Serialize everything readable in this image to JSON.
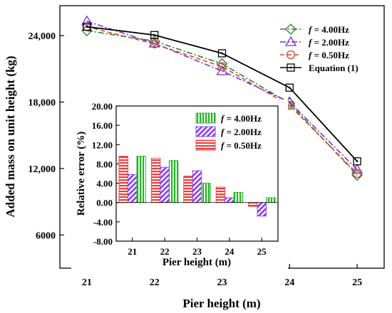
{
  "chart_data": [
    {
      "type": "line",
      "xlabel": "Pier height (m)",
      "ylabel": "Added mass on unit height (kg)",
      "x": [
        21,
        22,
        23,
        24,
        25
      ],
      "xticks": [
        "21",
        "22",
        "23",
        "24",
        "25"
      ],
      "xlim": [
        20.6,
        25.4
      ],
      "yticks": [
        "6000",
        "12,000",
        "18,000",
        "24,000"
      ],
      "ytick_values": [
        6000,
        12000,
        18000,
        24000
      ],
      "ylim": [
        3000,
        26700
      ],
      "legend_position": "top-right",
      "series": [
        {
          "label_prefix": "f",
          "label_rest": " = 4.00Hz",
          "color": "#2e7d2e",
          "dash": "dash-dot",
          "marker": "diamond",
          "values": [
            24450,
            23500,
            21450,
            17900,
            11400
          ]
        },
        {
          "label_prefix": "f",
          "label_rest": " = 2.00Hz",
          "color": "#7b2fd6",
          "dash": "dash-dot",
          "marker": "triangle",
          "values": [
            25300,
            23300,
            20800,
            18000,
            11900
          ]
        },
        {
          "label_prefix": "f",
          "label_rest": " = 0.50Hz",
          "color": "#d2462a",
          "dash": "dash",
          "marker": "circle",
          "values": [
            24800,
            23250,
            21200,
            17700,
            11550
          ]
        },
        {
          "label": "Equation (1)",
          "color": "#000000",
          "dash": "solid",
          "marker": "square",
          "values": [
            24800,
            24050,
            22400,
            19300,
            12650
          ]
        }
      ]
    },
    {
      "type": "bar",
      "xlabel": "Pier height (m)",
      "ylabel": "Relative error (%)",
      "categories": [
        "21",
        "22",
        "23",
        "24",
        "25"
      ],
      "yticks": [
        "-8.00",
        "-4.00",
        "0.00",
        "4.00",
        "8.00",
        "12.00",
        "16.00",
        "20.00"
      ],
      "ytick_values": [
        -8,
        -4,
        0,
        4,
        8,
        12,
        16,
        20
      ],
      "ylim": [
        -8,
        20
      ],
      "legend_position": "top-right",
      "series": [
        {
          "label_prefix": "f",
          "label_rest": " = 4.00Hz",
          "color": "#22b522",
          "hatch": "vertical",
          "values": [
            9.6,
            8.7,
            4.0,
            2.1,
            1.0
          ]
        },
        {
          "label_prefix": "f",
          "label_rest": " = 2.00Hz",
          "color": "#8a3cf0",
          "hatch": "diagonal",
          "values": [
            5.8,
            7.3,
            6.6,
            1.0,
            -2.8
          ]
        },
        {
          "label_prefix": "f",
          "label_rest": " = 0.50Hz",
          "color": "#f03c3c",
          "hatch": "horizontal",
          "values": [
            9.6,
            9.2,
            5.5,
            3.2,
            -0.8
          ]
        }
      ]
    }
  ]
}
